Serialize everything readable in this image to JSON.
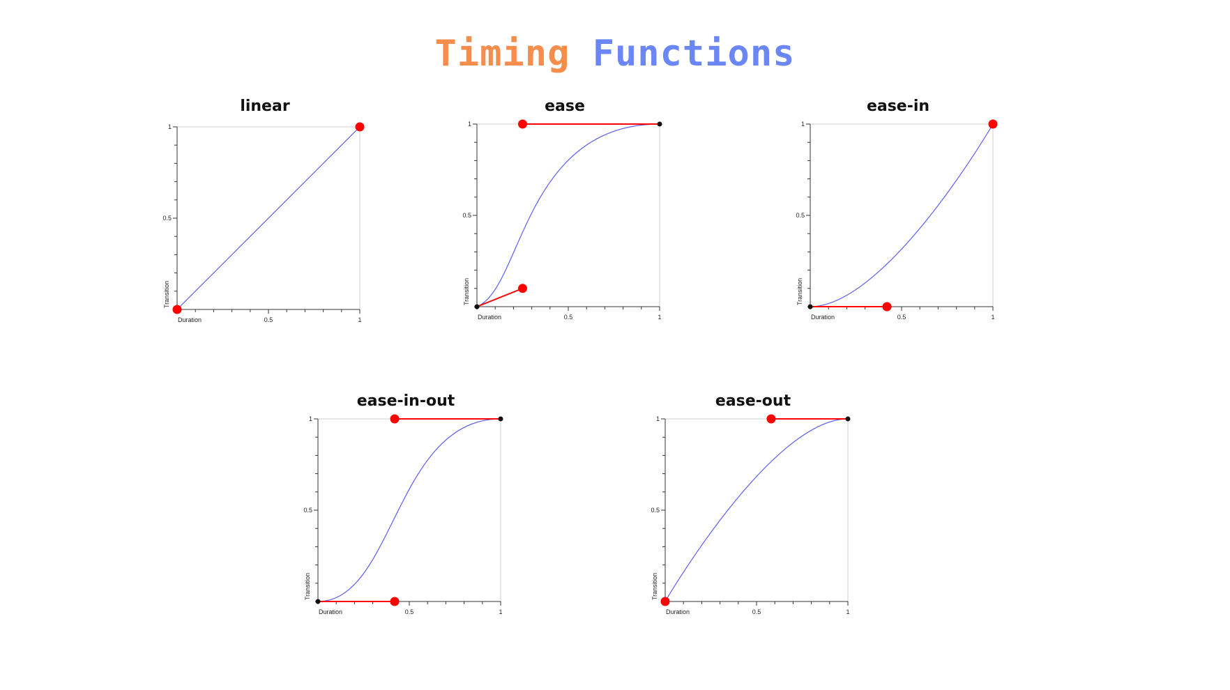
{
  "title": {
    "word1": "Timing",
    "word2": "Functions",
    "word1_color": "#f58d4c",
    "word2_color": "#6b86f5"
  },
  "colors": {
    "curve": "#5b5ef0",
    "handle": "#ff0000",
    "anchor": "#111111",
    "axis": "#333333",
    "frame": "#cfcfcf"
  },
  "charts": [
    {
      "id": "linear",
      "title": "linear",
      "bezier": [
        0.0,
        0.0,
        1.0,
        1.0
      ],
      "x_label": "Duration",
      "y_label": "Transition",
      "x_ticks": [
        "0.5",
        "1"
      ],
      "y_ticks": [
        "0.5",
        "1"
      ]
    },
    {
      "id": "ease",
      "title": "ease",
      "bezier": [
        0.25,
        0.1,
        0.25,
        1.0
      ],
      "x_label": "Duration",
      "y_label": "Transition",
      "x_ticks": [
        "0.5",
        "1"
      ],
      "y_ticks": [
        "0.5",
        "1"
      ]
    },
    {
      "id": "ease-in",
      "title": "ease-in",
      "bezier": [
        0.42,
        0.0,
        1.0,
        1.0
      ],
      "x_label": "Duration",
      "y_label": "Transition",
      "x_ticks": [
        "0.5",
        "1"
      ],
      "y_ticks": [
        "0.5",
        "1"
      ]
    },
    {
      "id": "ease-in-out",
      "title": "ease-in-out",
      "bezier": [
        0.42,
        0.0,
        0.42,
        1.0
      ],
      "x_label": "Duration",
      "y_label": "Transition",
      "x_ticks": [
        "0.5",
        "1"
      ],
      "y_ticks": [
        "0.5",
        "1"
      ]
    },
    {
      "id": "ease-out",
      "title": "ease-out",
      "bezier": [
        0.0,
        0.0,
        0.58,
        1.0
      ],
      "x_label": "Duration",
      "y_label": "Transition",
      "x_ticks": [
        "0.5",
        "1"
      ],
      "y_ticks": [
        "0.5",
        "1"
      ]
    }
  ]
}
